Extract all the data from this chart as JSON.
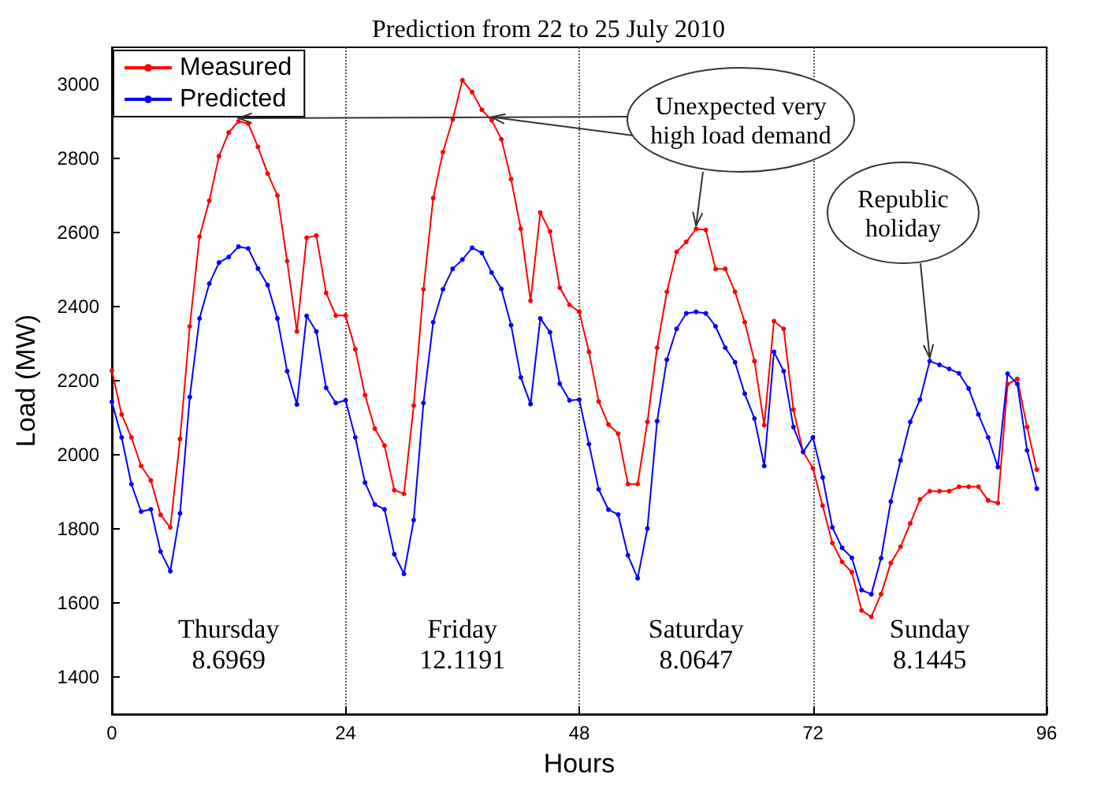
{
  "chart_data": {
    "type": "line",
    "title": "Prediction from 22 to 25 July 2010",
    "xlabel": "Hours",
    "ylabel": "Load (MW)",
    "x": [
      0,
      1,
      2,
      3,
      4,
      5,
      6,
      7,
      8,
      9,
      10,
      11,
      12,
      13,
      14,
      15,
      16,
      17,
      18,
      19,
      20,
      21,
      22,
      23,
      24,
      25,
      26,
      27,
      28,
      29,
      30,
      31,
      32,
      33,
      34,
      35,
      36,
      37,
      38,
      39,
      40,
      41,
      42,
      43,
      44,
      45,
      46,
      47,
      48,
      49,
      50,
      51,
      52,
      53,
      54,
      55,
      56,
      57,
      58,
      59,
      60,
      61,
      62,
      63,
      64,
      65,
      66,
      67,
      68,
      69,
      70,
      71,
      72,
      73,
      74,
      75,
      76,
      77,
      78,
      79,
      80,
      81,
      82,
      83,
      84,
      85,
      86,
      87,
      88,
      89,
      90,
      91,
      92,
      93,
      94,
      95
    ],
    "series": [
      {
        "name": "Measured",
        "color": "#ff0000",
        "values": [
          2227,
          2109,
          2047,
          1970,
          1931,
          1838,
          1804,
          2043,
          2347,
          2589,
          2686,
          2806,
          2870,
          2900,
          2894,
          2831,
          2759,
          2700,
          2523,
          2333,
          2586,
          2592,
          2437,
          2376,
          2376,
          2285,
          2161,
          2071,
          2025,
          1905,
          1895,
          2133,
          2447,
          2693,
          2817,
          2905,
          3011,
          2979,
          2931,
          2903,
          2852,
          2744,
          2610,
          2416,
          2654,
          2603,
          2451,
          2405,
          2386,
          2278,
          2144,
          2082,
          2057,
          1921,
          1921,
          2089,
          2289,
          2440,
          2548,
          2575,
          2610,
          2607,
          2502,
          2502,
          2440,
          2358,
          2253,
          2080,
          2361,
          2340,
          2122,
          2008,
          1964,
          1863,
          1762,
          1711,
          1683,
          1580,
          1563,
          1624,
          1708,
          1752,
          1815,
          1880,
          1902,
          1902,
          1902,
          1914,
          1914,
          1914,
          1877,
          1870,
          2191,
          2205,
          2075,
          1960
        ]
      },
      {
        "name": "Predicted",
        "color": "#0000ff",
        "values": [
          2143,
          2047,
          1921,
          1847,
          1853,
          1739,
          1686,
          1842,
          2156,
          2368,
          2462,
          2519,
          2534,
          2562,
          2557,
          2503,
          2458,
          2368,
          2226,
          2136,
          2375,
          2333,
          2181,
          2140,
          2147,
          2047,
          1925,
          1866,
          1853,
          1732,
          1679,
          1824,
          2140,
          2358,
          2447,
          2502,
          2527,
          2559,
          2545,
          2492,
          2448,
          2350,
          2209,
          2137,
          2368,
          2331,
          2192,
          2147,
          2149,
          2029,
          1907,
          1852,
          1839,
          1729,
          1667,
          1801,
          2091,
          2257,
          2340,
          2382,
          2386,
          2382,
          2347,
          2289,
          2250,
          2165,
          2098,
          1970,
          2278,
          2226,
          2075,
          2008,
          2047,
          1939,
          1804,
          1749,
          1722,
          1635,
          1624,
          1721,
          1874,
          1985,
          2089,
          2149,
          2253,
          2243,
          2232,
          2220,
          2179,
          2109,
          2047,
          1967,
          2219,
          2191,
          2012,
          1909
        ]
      }
    ],
    "xlim": [
      0,
      96
    ],
    "xticks": [
      0,
      24,
      48,
      72,
      96
    ],
    "ylim": [
      1300,
      3100
    ],
    "yticks": [
      1400,
      1600,
      1800,
      2000,
      2200,
      2400,
      2600,
      2800,
      3000
    ],
    "grid": "x",
    "legend": "top left",
    "marker": "circle",
    "line_style": "solid",
    "annotations": [
      {
        "text": "Unexpected very\nhigh load demand",
        "x": 60,
        "y": 2610
      },
      {
        "text": "Republic\nholiday",
        "x": 84,
        "y": 2253
      },
      "Thursday\n8.6969",
      "Friday\n12.1191",
      "Saturday\n8.0647",
      "Sunday\n8.1445"
    ]
  }
}
